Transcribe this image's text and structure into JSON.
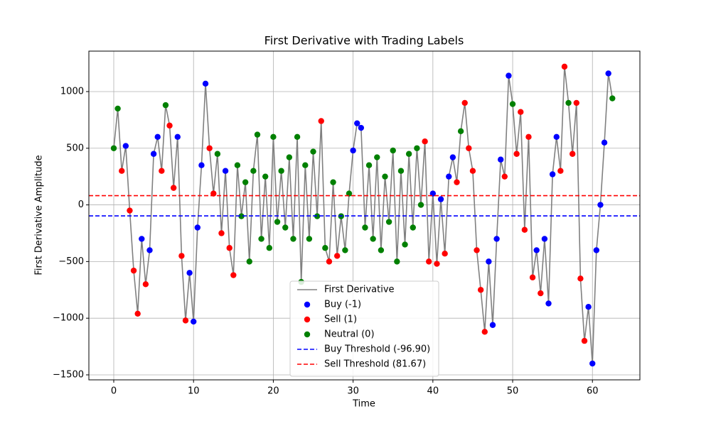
{
  "chart_data": {
    "type": "line",
    "title": "First Derivative with Trading Labels",
    "x_label": "Time",
    "y_label": "First Derivative Amplitude",
    "xlim": [
      -3.12,
      65.95
    ],
    "ylim": [
      -1544,
      1357
    ],
    "xticks": [
      0,
      10,
      20,
      30,
      40,
      50,
      60
    ],
    "yticks": [
      {
        "value": -1500,
        "label": "−1500"
      },
      {
        "value": -1000,
        "label": "−1000"
      },
      {
        "value": -500,
        "label": "−500"
      },
      0,
      500,
      1000
    ],
    "grid": true,
    "legend": "lower center",
    "series": [
      {
        "name": "First Derivative",
        "type": "line",
        "color": "#808080",
        "x": [
          0,
          0.5,
          1,
          1.5,
          2,
          2.5,
          3,
          3.5,
          4,
          4.5,
          5,
          5.5,
          6,
          6.5,
          7,
          7.5,
          8,
          8.5,
          9,
          9.5,
          10,
          10.5,
          11,
          11.5,
          12,
          12.5,
          13,
          13.5,
          14,
          14.5,
          15,
          15.5,
          16,
          16.5,
          17,
          17.5,
          18,
          18.5,
          19,
          19.5,
          20,
          20.5,
          21,
          21.5,
          22,
          22.5,
          23,
          23.5,
          24,
          24.5,
          25,
          25.5,
          26,
          26.5,
          27,
          27.5,
          28,
          28.5,
          29,
          29.5,
          30,
          30.5,
          31,
          31.5,
          32,
          32.5,
          33,
          33.5,
          34,
          34.5,
          35,
          35.5,
          36,
          36.5,
          37,
          37.5,
          38,
          38.5,
          39,
          39.5,
          40,
          40.5,
          41,
          41.5,
          42,
          42.5,
          43,
          43.5,
          44,
          44.5,
          45,
          45.5,
          46,
          46.5,
          47,
          47.5,
          48,
          48.5,
          49,
          49.5,
          50,
          50.5,
          51,
          51.5,
          52,
          52.5,
          53,
          53.5,
          54,
          54.5,
          55,
          55.5,
          56,
          56.5,
          57,
          57.5,
          58,
          58.5,
          59,
          59.5,
          60,
          60.5,
          61,
          61.5,
          62,
          62.5
        ],
        "values": [
          500,
          850,
          300,
          520,
          -50,
          -580,
          -960,
          -300,
          -700,
          -400,
          450,
          600,
          300,
          880,
          700,
          150,
          600,
          -450,
          -1020,
          -600,
          -1030,
          -200,
          350,
          1070,
          500,
          100,
          450,
          -250,
          300,
          -380,
          -620,
          350,
          -100,
          200,
          -500,
          300,
          620,
          -300,
          250,
          -380,
          600,
          -150,
          300,
          -200,
          420,
          -300,
          600,
          -680,
          350,
          -300,
          470,
          -100,
          740,
          -380,
          -500,
          200,
          -450,
          -100,
          -400,
          100,
          480,
          720,
          680,
          -200,
          350,
          -300,
          420,
          -400,
          250,
          -150,
          480,
          -500,
          300,
          -350,
          450,
          -200,
          500,
          0,
          560,
          -500,
          100,
          -520,
          50,
          -430,
          250,
          420,
          200,
          650,
          900,
          500,
          300,
          -400,
          -750,
          -1120,
          -500,
          -1060,
          -300,
          400,
          250,
          1140,
          890,
          450,
          820,
          -220,
          600,
          -640,
          -400,
          -780,
          -300,
          -870,
          270,
          600,
          300,
          1220,
          900,
          450,
          900,
          -650,
          -1200,
          -900,
          -1400,
          -400,
          0,
          550,
          1160,
          940
        ]
      },
      {
        "name": "Buy (-1)",
        "type": "scatter",
        "color": "#0000ff",
        "x": [
          1.5,
          3.5,
          4.5,
          5,
          5.5,
          8,
          9.5,
          10,
          10.5,
          11,
          11.5,
          14,
          30,
          30.5,
          31,
          40,
          41,
          42,
          42.5,
          47,
          47.5,
          48,
          48.5,
          49.5,
          53,
          54,
          54.5,
          55,
          55.5,
          59.5,
          60,
          60.5,
          61,
          61.5,
          62
        ],
        "values": [
          520,
          -300,
          -400,
          450,
          600,
          600,
          -600,
          -1030,
          -200,
          350,
          1070,
          300,
          480,
          720,
          680,
          100,
          50,
          250,
          420,
          -500,
          -1060,
          -300,
          400,
          1140,
          -400,
          -300,
          -870,
          270,
          600,
          -900,
          -1400,
          -400,
          0,
          550,
          1160
        ]
      },
      {
        "name": "Sell (1)",
        "type": "scatter",
        "color": "#ff0000",
        "x": [
          1,
          2,
          2.5,
          3,
          4,
          6,
          7,
          7.5,
          8.5,
          9,
          12,
          12.5,
          13.5,
          14.5,
          15,
          26,
          27,
          28,
          39,
          39.5,
          40.5,
          41.5,
          43,
          44,
          44.5,
          45,
          45.5,
          46,
          46.5,
          49,
          50.5,
          51,
          51.5,
          52,
          52.5,
          53.5,
          56,
          56.5,
          57.5,
          58,
          58.5,
          59
        ],
        "values": [
          300,
          -50,
          -580,
          -960,
          -700,
          300,
          700,
          150,
          -450,
          -1020,
          500,
          100,
          -250,
          -380,
          -620,
          740,
          -500,
          -450,
          560,
          -500,
          -520,
          -430,
          200,
          900,
          500,
          300,
          -400,
          -750,
          -1120,
          250,
          450,
          820,
          -220,
          600,
          -640,
          -780,
          300,
          1220,
          450,
          900,
          -650,
          -1200
        ]
      },
      {
        "name": "Neutral (0)",
        "type": "scatter",
        "color": "#008000",
        "x": [
          0,
          0.5,
          6.5,
          13,
          15.5,
          16,
          16.5,
          17,
          17.5,
          18,
          18.5,
          19,
          19.5,
          20,
          20.5,
          21,
          21.5,
          22,
          22.5,
          23,
          23.5,
          24,
          24.5,
          25,
          25.5,
          26.5,
          27.5,
          28.5,
          29,
          29.5,
          31.5,
          32,
          32.5,
          33,
          33.5,
          34,
          34.5,
          35,
          35.5,
          36,
          36.5,
          37,
          37.5,
          38,
          38.5,
          43.5,
          50,
          57,
          62.5
        ],
        "values": [
          500,
          850,
          880,
          450,
          350,
          -100,
          200,
          -500,
          300,
          620,
          -300,
          250,
          -380,
          600,
          -150,
          300,
          -200,
          420,
          -300,
          600,
          -680,
          350,
          -300,
          470,
          -100,
          -380,
          200,
          -100,
          -400,
          100,
          -200,
          350,
          -300,
          420,
          -400,
          250,
          -150,
          480,
          -500,
          300,
          -350,
          450,
          -200,
          500,
          0,
          650,
          890,
          900,
          940
        ]
      },
      {
        "name": "Buy Threshold (-96.90)",
        "type": "hline",
        "color": "#0000ff",
        "value": -96.9
      },
      {
        "name": "Sell Threshold (81.67)",
        "type": "hline",
        "color": "#ff0000",
        "value": 81.67
      }
    ]
  }
}
